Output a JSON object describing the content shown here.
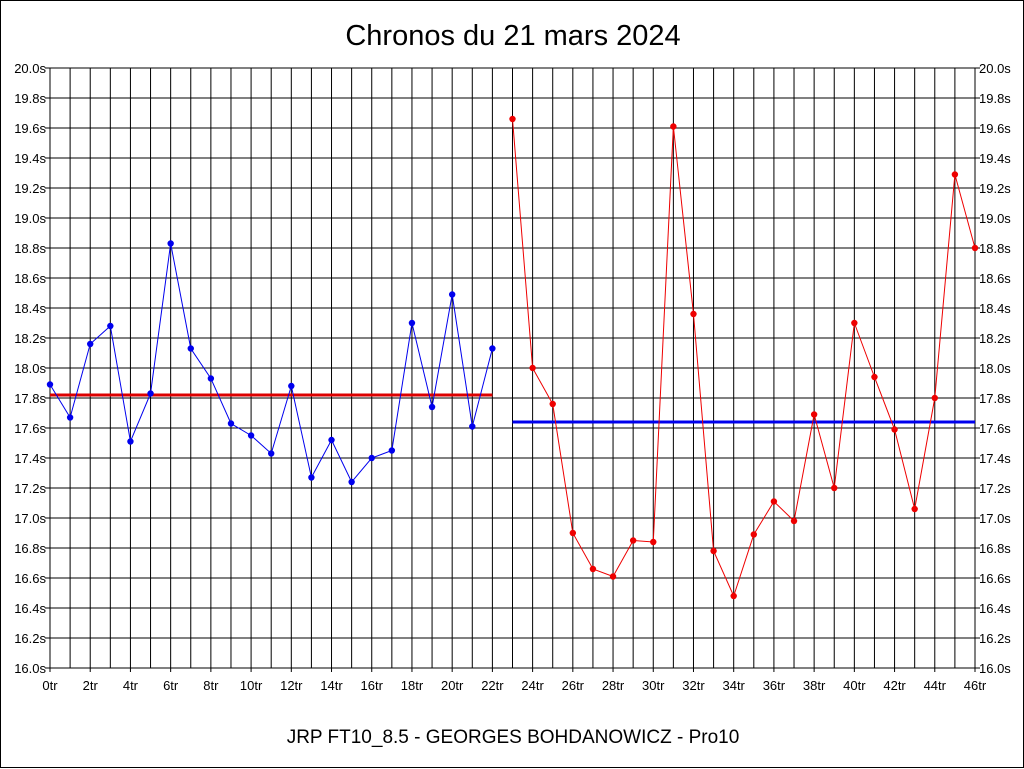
{
  "chart_data": {
    "type": "line",
    "title": "Chronos du 21 mars 2024",
    "footer": "JRP FT10_8.5 - GEORGES BOHDANOWICZ - Pro10",
    "ylim": [
      16.0,
      20.0
    ],
    "y_ticks": [
      "16.0s",
      "16.2s",
      "16.4s",
      "16.6s",
      "16.8s",
      "17.0s",
      "17.2s",
      "17.4s",
      "17.6s",
      "17.8s",
      "18.0s",
      "18.2s",
      "18.4s",
      "18.6s",
      "18.8s",
      "19.0s",
      "19.2s",
      "19.4s",
      "19.6s",
      "19.8s",
      "20.0s"
    ],
    "xlim": [
      0,
      46
    ],
    "x_ticks": [
      "0tr",
      "2tr",
      "4tr",
      "6tr",
      "8tr",
      "10tr",
      "12tr",
      "14tr",
      "16tr",
      "18tr",
      "20tr",
      "22tr",
      "24tr",
      "26tr",
      "28tr",
      "30tr",
      "32tr",
      "34tr",
      "36tr",
      "38tr",
      "40tr",
      "42tr",
      "44tr",
      "46tr"
    ],
    "grid": true,
    "series": [
      {
        "color": "#0000ee",
        "x": [
          0,
          1,
          2,
          3,
          4,
          5,
          6,
          7,
          8,
          9,
          10,
          11,
          12,
          13,
          14,
          15,
          16,
          17,
          18,
          19,
          20,
          21,
          22
        ],
        "values": [
          17.89,
          17.67,
          18.16,
          18.28,
          17.51,
          17.83,
          18.83,
          18.13,
          17.93,
          17.63,
          17.55,
          17.43,
          17.88,
          17.27,
          17.52,
          17.24,
          17.4,
          17.45,
          18.3,
          17.74,
          18.49,
          17.61,
          18.13
        ]
      },
      {
        "color": "#ee0000",
        "x": [
          23,
          24,
          25,
          26,
          27,
          28,
          29,
          30,
          31,
          32,
          33,
          34,
          35,
          36,
          37,
          38,
          39,
          40,
          41,
          42,
          43,
          44,
          45,
          46
        ],
        "values": [
          19.66,
          18.0,
          17.76,
          16.9,
          16.66,
          16.61,
          16.85,
          16.84,
          19.61,
          18.36,
          16.78,
          16.48,
          16.89,
          17.11,
          16.98,
          17.69,
          17.2,
          18.3,
          17.94,
          17.59,
          17.06,
          17.8,
          19.29,
          18.8
        ]
      }
    ],
    "mean_lines": [
      {
        "color": "#dd0000",
        "value": 17.82,
        "x_start": 0,
        "x_end": 22
      },
      {
        "color": "#0000ee",
        "value": 17.64,
        "x_start": 23,
        "x_end": 46
      }
    ]
  }
}
